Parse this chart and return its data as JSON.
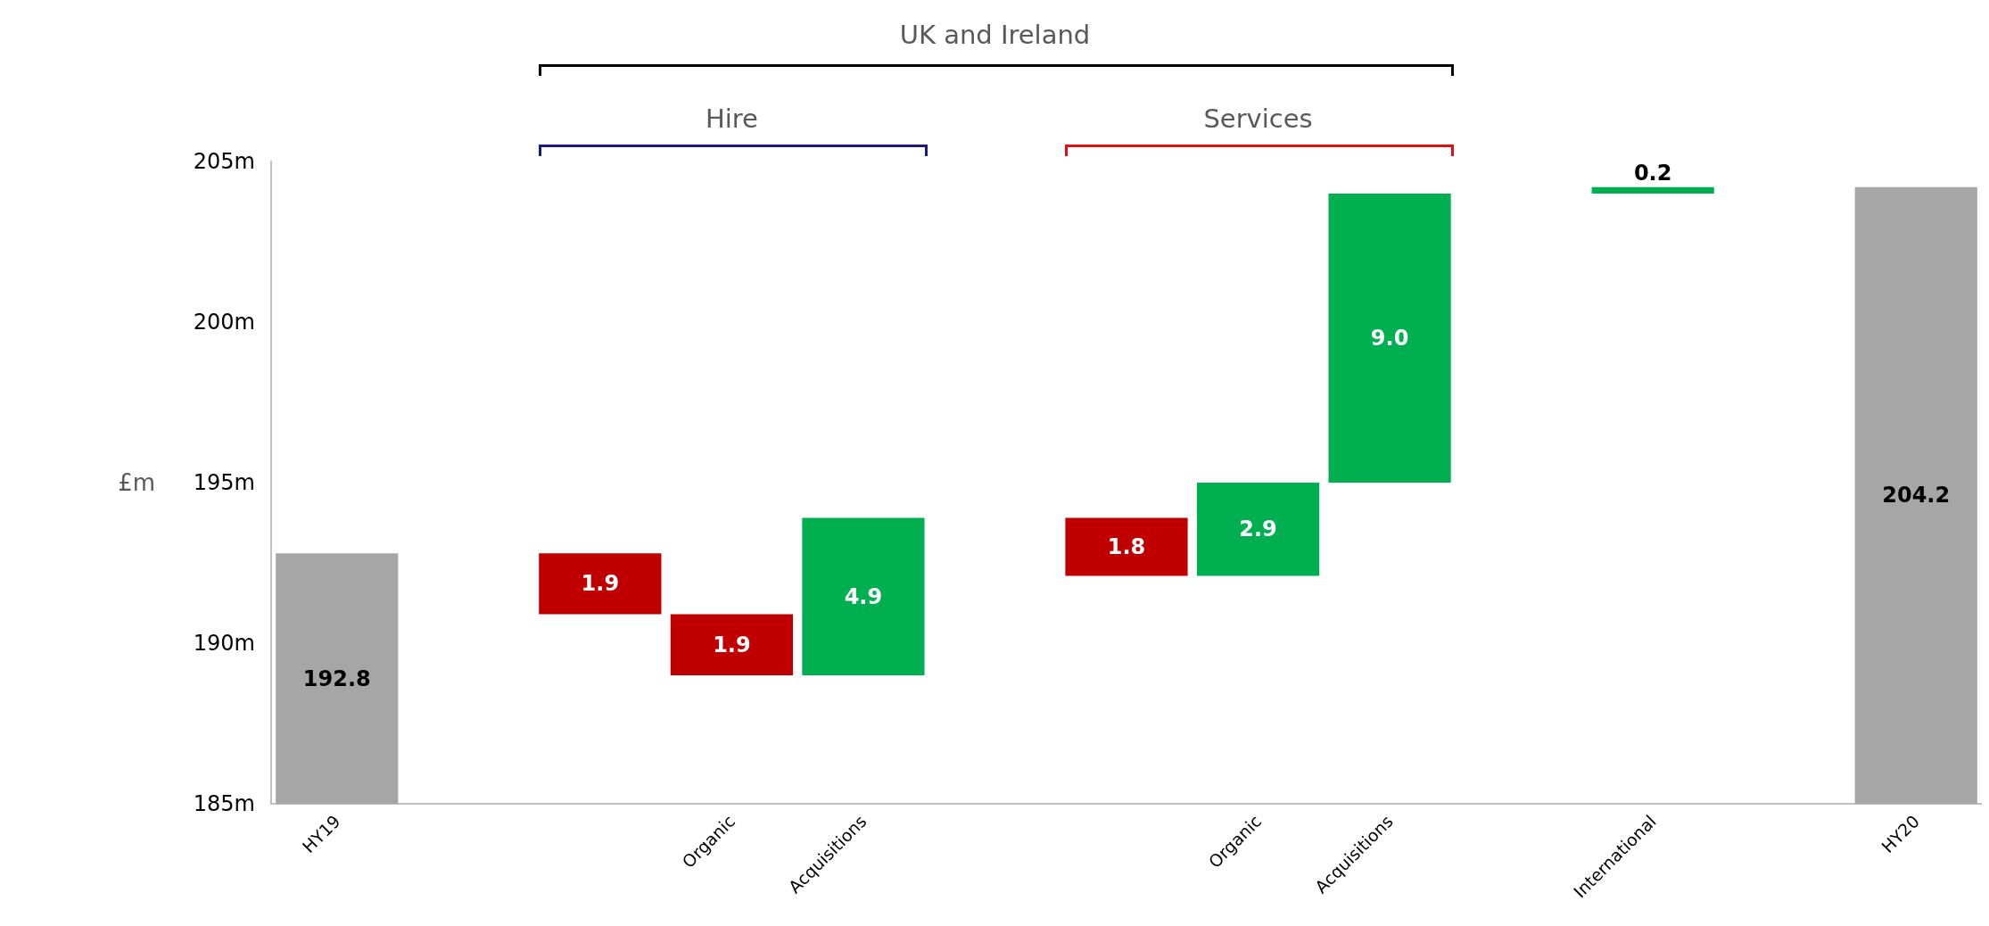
{
  "chart_data": {
    "type": "bar",
    "ylabel": "£m",
    "annotations": [
      "UK and Ireland",
      "Hire",
      "Services"
    ],
    "categories": [
      "HY19",
      null,
      null,
      "Organic",
      "Acquisitions",
      null,
      null,
      "Organic",
      "Acquisitions",
      null,
      "International",
      null,
      "HY20"
    ],
    "values": [
      7.8,
      null,
      -1.9,
      -1.9,
      4.9,
      null,
      -1.8,
      2.9,
      9.0,
      null,
      0.2,
      null,
      19.2
    ],
    "base": [
      185,
      null,
      192.8,
      190.9,
      189.0,
      null,
      193.9,
      192.1,
      195.0,
      null,
      204.0,
      null,
      185
    ],
    "value_labels": [
      "192.8",
      null,
      "1.9",
      "1.9",
      "4.9",
      null,
      "1.8",
      "2.9",
      "9.0",
      null,
      "0.2",
      null,
      "204.2"
    ],
    "colors": [
      "#a6a6a6",
      null,
      "#c00000",
      "#c00000",
      "#00b050",
      null,
      "#c00000",
      "#00b050",
      "#00b050",
      null,
      "#00b050",
      null,
      "#a6a6a6"
    ],
    "ylim": [
      185,
      205
    ],
    "yticks": [
      {
        "value": 185,
        "label": "185m"
      },
      {
        "value": 190,
        "label": "190m"
      },
      {
        "value": 195,
        "label": "195m"
      },
      {
        "value": 200,
        "label": "200m"
      },
      {
        "value": 205,
        "label": "205m"
      }
    ]
  }
}
